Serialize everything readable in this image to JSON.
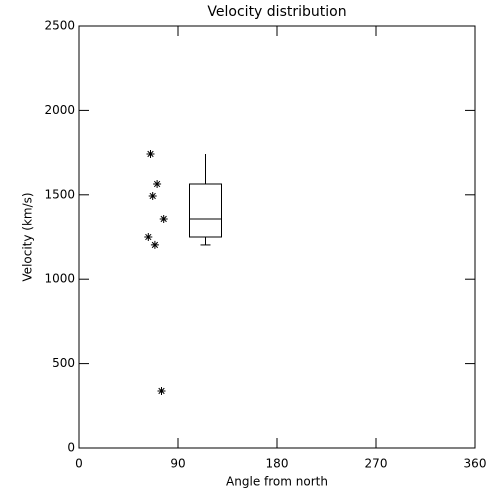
{
  "chart_data": {
    "type": "scatter",
    "title": "Velocity distribution",
    "x_label": "Angle from north",
    "y_label": "Velocity (km/s)",
    "series": [
      {
        "color": "#000000",
        "x": [
          65,
          71,
          67,
          77,
          63,
          69,
          75
        ],
        "values": [
          1742,
          1564,
          1493,
          1357,
          1250,
          1203,
          338
        ]
      }
    ],
    "box": {
      "x": 115,
      "min": 1203,
      "q1": 1250,
      "median": 1357,
      "q3": 1564,
      "max": 1742
    },
    "xlim": [
      0,
      360
    ],
    "xticks": [
      0,
      90,
      180,
      270,
      360
    ],
    "ylim": [
      0,
      2500
    ],
    "yticks": [
      0,
      500,
      1000,
      1500,
      2000,
      2500
    ]
  }
}
